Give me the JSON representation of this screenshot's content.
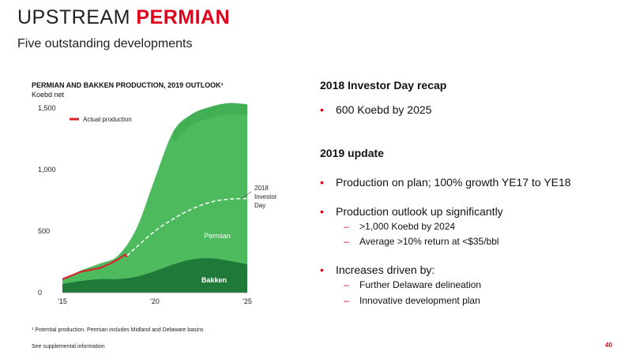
{
  "header": {
    "title_part1": "UPSTREAM ",
    "title_part2": "PERMIAN",
    "subtitle": "Five outstanding developments"
  },
  "chart_data": {
    "type": "area",
    "title": "PERMIAN AND BAKKEN PRODUCTION, 2019 OUTLOOK¹",
    "ylabel": "Koebd net",
    "ylim": [
      0,
      1500
    ],
    "yticks": [
      0,
      500,
      1000,
      1500
    ],
    "ytick_labels": [
      "0",
      "500",
      "1,000",
      "1,500"
    ],
    "xlim": [
      2015,
      2025
    ],
    "xtick_labels": [
      "'15",
      "'20",
      "'25"
    ],
    "xticks": [
      2015,
      2020,
      2025
    ],
    "x": [
      2015,
      2016,
      2017,
      2018,
      2019,
      2020,
      2021,
      2022,
      2023,
      2024,
      2025
    ],
    "series": [
      {
        "name": "Bakken",
        "color": "#1f7a3a",
        "values": [
          70,
          95,
          110,
          110,
          130,
          175,
          230,
          270,
          280,
          260,
          230
        ]
      },
      {
        "name": "Permian",
        "color": "#4dba5e",
        "values": [
          35,
          85,
          125,
          190,
          390,
          750,
          1080,
          1180,
          1230,
          1280,
          1300
        ]
      }
    ],
    "actual_production": {
      "name": "Actual production",
      "color": "#d8252a",
      "x": [
        2015,
        2015.5,
        2016,
        2016.5,
        2017,
        2017.5,
        2018,
        2018.4,
        2018.5
      ],
      "values": [
        110,
        140,
        170,
        185,
        200,
        230,
        270,
        310,
        290
      ]
    },
    "investor_day_2018": {
      "name": "2018 Investor Day",
      "x": [
        2018.5,
        2019,
        2020,
        2021,
        2022,
        2023,
        2024,
        2025
      ],
      "values": [
        300,
        370,
        500,
        600,
        680,
        735,
        760,
        765
      ]
    },
    "labels": {
      "legend_actual": "Actual production",
      "investor_day": [
        "2018",
        "Investor",
        "Day"
      ],
      "permian": "Permian",
      "bakken": "Bakken"
    },
    "colors": {
      "bakken": "#1f7a3a",
      "permian": "#4dba5e",
      "dark_permian": "#3da54f",
      "actual": "#d8252a",
      "accent": "#e0001b"
    }
  },
  "recap": {
    "title": "2018 Investor Day recap",
    "bullets": [
      "600 Koebd by 2025"
    ]
  },
  "update": {
    "title": "2019 update",
    "b1": "Production on plan; 100% growth YE17 to YE18",
    "b2": "Production outlook up significantly",
    "b2_subs": [
      ">1,000 Koebd by 2024",
      "Average >10% return at <$35/bbl"
    ],
    "b3": "Increases driven by:",
    "b3_subs": [
      "Further Delaware delineation",
      "Innovative development plan"
    ]
  },
  "bullet_symbol": "•",
  "dash_symbol": "–",
  "footnote": "¹ Potential production. Permian includes Midland and Delaware basins",
  "supplemental": "See supplemental information",
  "page_number": "40"
}
